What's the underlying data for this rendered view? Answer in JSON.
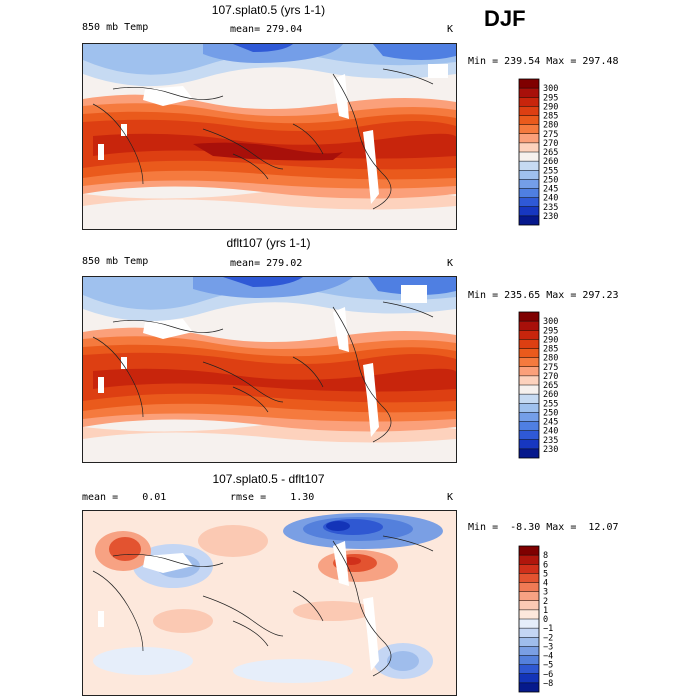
{
  "season": "DJF",
  "panels": [
    {
      "title": "107.splat0.5 (yrs 1-1)",
      "field": "850 mb Temp",
      "stat": "mean= 279.04",
      "unit": "K",
      "minmax": "Min = 239.54 Max = 297.48",
      "colorbar": {
        "labels": [
          "300",
          "295",
          "290",
          "285",
          "280",
          "275",
          "270",
          "265",
          "260",
          "255",
          "250",
          "245",
          "240",
          "235",
          "230"
        ],
        "colors": [
          "#7f0000",
          "#a8100a",
          "#c8250c",
          "#dd3f12",
          "#ea5a1c",
          "#f57a3e",
          "#fba07a",
          "#fdd2bd",
          "#f6f1ee",
          "#c6daf2",
          "#9fc1ee",
          "#749ee8",
          "#4f7fe2",
          "#2f59d6",
          "#1737c0",
          "#06188c"
        ]
      }
    },
    {
      "title": "dflt107 (yrs 1-1)",
      "field": "850 mb Temp",
      "stat": "mean= 279.02",
      "unit": "K",
      "minmax": "Min = 235.65 Max = 297.23",
      "colorbar": {
        "labels": [
          "300",
          "295",
          "290",
          "285",
          "280",
          "275",
          "270",
          "265",
          "260",
          "255",
          "250",
          "245",
          "240",
          "235",
          "230"
        ],
        "colors": [
          "#7f0000",
          "#a8100a",
          "#c8250c",
          "#dd3f12",
          "#ea5a1c",
          "#f57a3e",
          "#fba07a",
          "#fdd2bd",
          "#f6f1ee",
          "#c6daf2",
          "#9fc1ee",
          "#749ee8",
          "#4f7fe2",
          "#2f59d6",
          "#1737c0",
          "#06188c"
        ]
      }
    },
    {
      "title": "107.splat0.5 - dflt107",
      "stat_left": "mean =    0.01",
      "stat": "rmse =    1.30",
      "unit": "K",
      "minmax": "Min =  -8.30 Max =  12.07",
      "colorbar": {
        "labels": [
          "8",
          "6",
          "5",
          "4",
          "3",
          "2",
          "1",
          "0",
          "−1",
          "−2",
          "−3",
          "−4",
          "−5",
          "−6",
          "−8"
        ],
        "colors": [
          "#7f0000",
          "#b0160c",
          "#d0301a",
          "#e35330",
          "#f07a55",
          "#f7a283",
          "#fbc9b3",
          "#fde8dc",
          "#e6eefa",
          "#c4d6f4",
          "#9fbdec",
          "#7a9fe4",
          "#5480dc",
          "#2f58d2",
          "#1334b8",
          "#061a8c"
        ]
      }
    }
  ]
}
